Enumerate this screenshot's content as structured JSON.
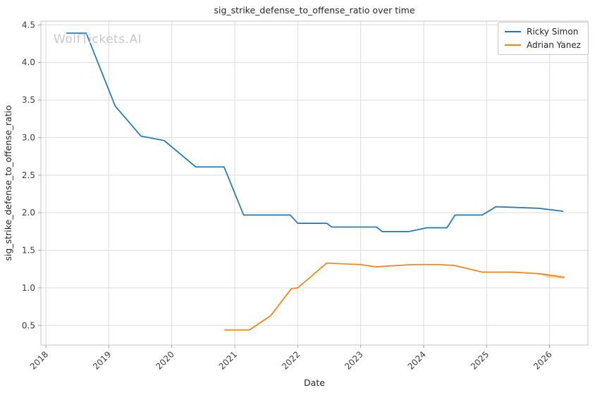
{
  "chart_data": {
    "type": "line",
    "title": "sig_strike_defense_to_offense_ratio over time",
    "xlabel": "Date",
    "ylabel": "sig_strike_defense_to_offense_ratio",
    "watermark": "WolfTickets.AI",
    "grid": true,
    "legend_position": "upper right",
    "xlim": [
      2017.92,
      2026.61
    ],
    "ylim": [
      0.24,
      4.55
    ],
    "x_ticks": [
      2018,
      2019,
      2020,
      2021,
      2022,
      2023,
      2024,
      2025,
      2026
    ],
    "y_ticks": [
      0.5,
      1.0,
      1.5,
      2.0,
      2.5,
      3.0,
      3.5,
      4.0,
      4.5
    ],
    "colors": {
      "ricky_simon": "#1f77b4",
      "adrian_yanez": "#ff7f0e"
    },
    "series": [
      {
        "name": "Ricky Simon",
        "color": "#1f77b4",
        "points": [
          [
            2018.33,
            4.39
          ],
          [
            2018.64,
            4.39
          ],
          [
            2019.1,
            3.42
          ],
          [
            2019.51,
            3.02
          ],
          [
            2019.88,
            2.96
          ],
          [
            2020.38,
            2.61
          ],
          [
            2020.83,
            2.61
          ],
          [
            2021.14,
            1.97
          ],
          [
            2021.88,
            1.97
          ],
          [
            2022.0,
            1.86
          ],
          [
            2022.46,
            1.86
          ],
          [
            2022.54,
            1.81
          ],
          [
            2023.25,
            1.81
          ],
          [
            2023.34,
            1.75
          ],
          [
            2023.77,
            1.75
          ],
          [
            2024.05,
            1.8
          ],
          [
            2024.37,
            1.8
          ],
          [
            2024.5,
            1.97
          ],
          [
            2024.93,
            1.97
          ],
          [
            2025.15,
            2.08
          ],
          [
            2025.82,
            2.06
          ],
          [
            2026.21,
            2.02
          ]
        ]
      },
      {
        "name": "Adrian Yanez",
        "color": "#ff7f0e",
        "points": [
          [
            2020.84,
            0.44
          ],
          [
            2021.23,
            0.44
          ],
          [
            2021.57,
            0.63
          ],
          [
            2021.9,
            0.99
          ],
          [
            2022.0,
            1.0
          ],
          [
            2022.46,
            1.33
          ],
          [
            2023.0,
            1.31
          ],
          [
            2023.24,
            1.28
          ],
          [
            2023.81,
            1.31
          ],
          [
            2024.22,
            1.31
          ],
          [
            2024.48,
            1.3
          ],
          [
            2024.93,
            1.21
          ],
          [
            2025.41,
            1.21
          ],
          [
            2025.82,
            1.19
          ],
          [
            2026.23,
            1.14
          ]
        ],
        "band": [
          [
            2025.82,
            1.2
          ],
          [
            2026.23,
            1.16
          ],
          [
            2026.23,
            1.12
          ],
          [
            2025.97,
            1.13
          ]
        ],
        "band_opacity": 0.25
      }
    ]
  }
}
